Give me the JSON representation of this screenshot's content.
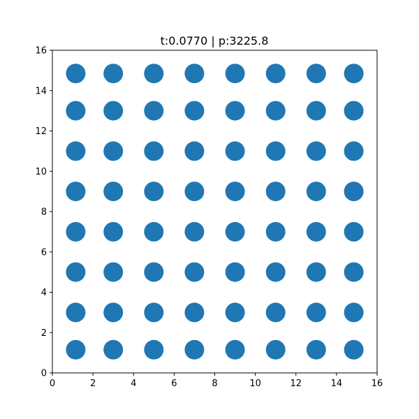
{
  "chart_data": {
    "type": "scatter",
    "title": "t:0.0770 | p:3225.8",
    "xlabel": "",
    "ylabel": "",
    "xlim": [
      0,
      16
    ],
    "ylim": [
      0,
      16
    ],
    "xticks": [
      0,
      2,
      4,
      6,
      8,
      10,
      12,
      14,
      16
    ],
    "yticks": [
      0,
      2,
      4,
      6,
      8,
      10,
      12,
      14,
      16
    ],
    "grid": false,
    "marker_color": "#1f77b4",
    "x_positions": [
      1.15,
      3.0,
      5.0,
      7.0,
      9.0,
      11.0,
      13.0,
      14.85
    ],
    "y_positions": [
      1.15,
      3.0,
      5.0,
      7.0,
      9.0,
      11.0,
      13.0,
      14.85
    ]
  }
}
